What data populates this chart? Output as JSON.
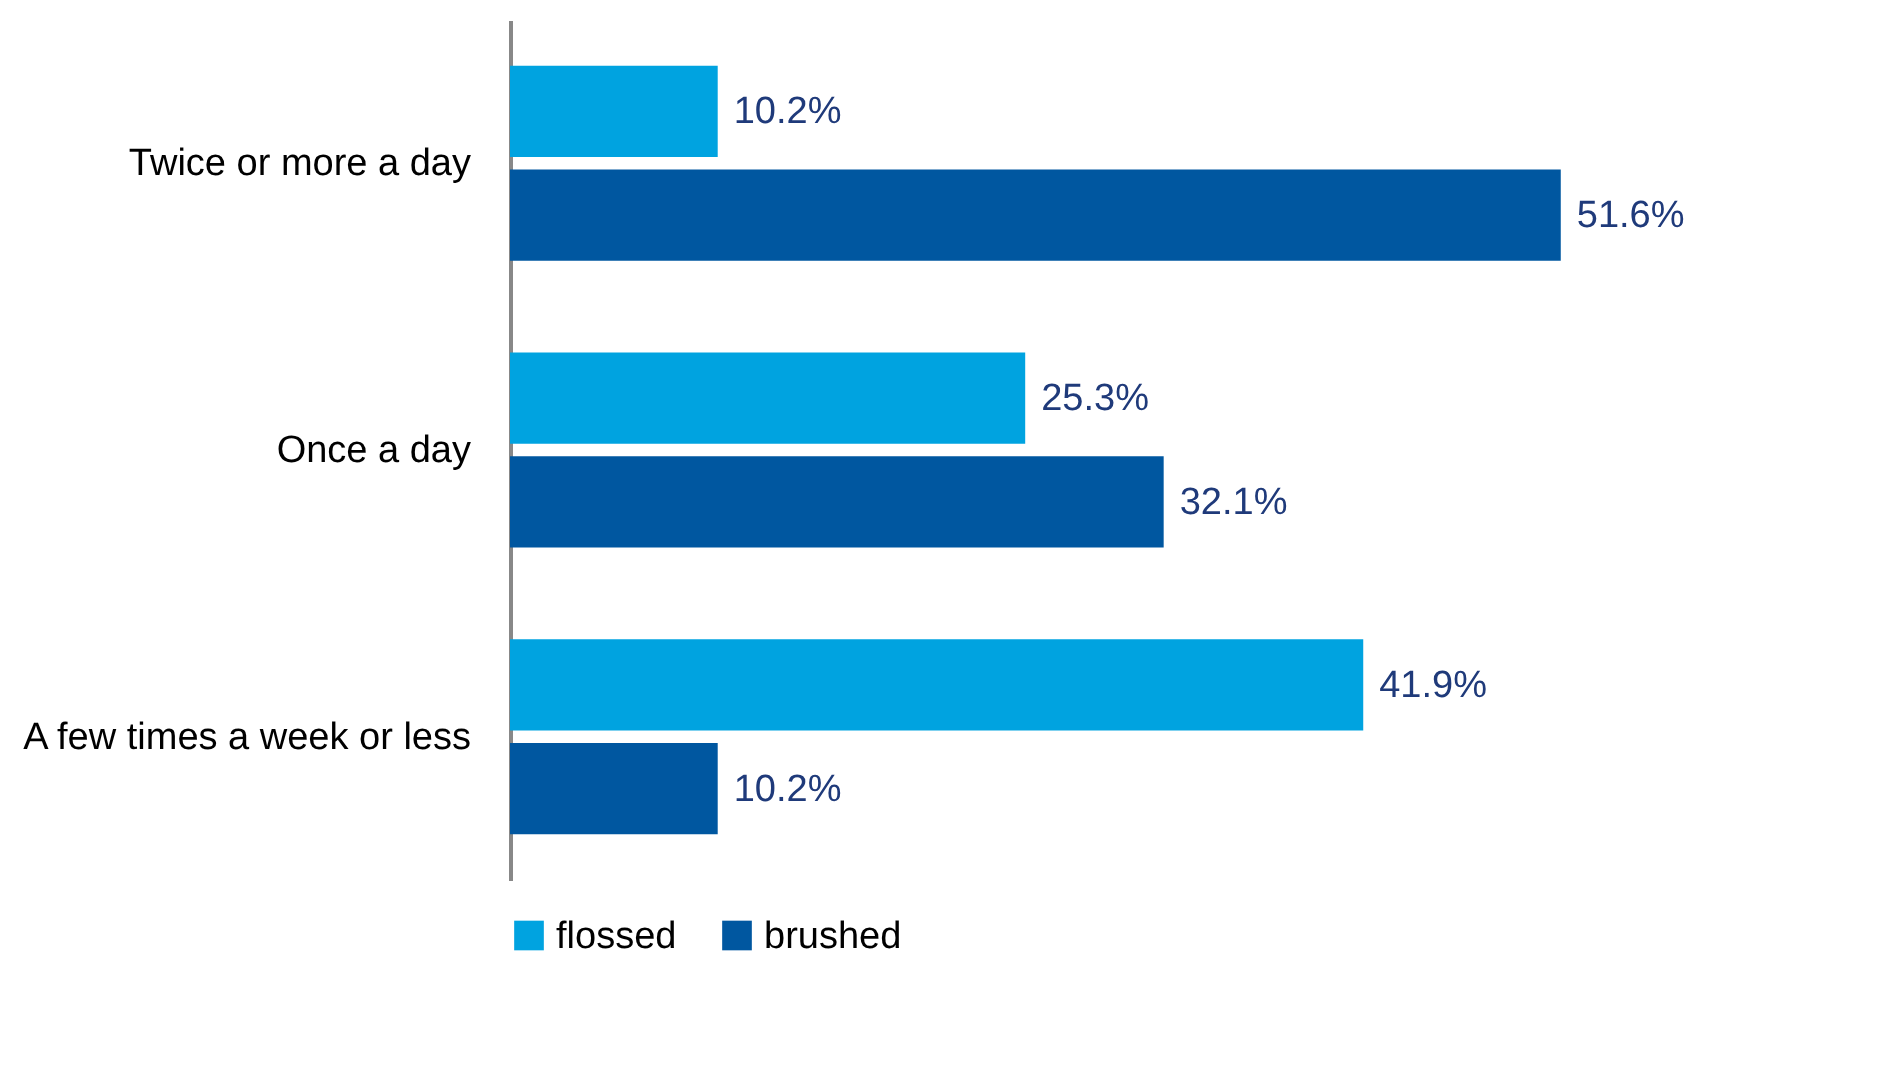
{
  "chart_data": {
    "type": "bar",
    "orientation": "horizontal",
    "categories": [
      "Twice or more a day",
      "Once a day",
      "A few times a week or less"
    ],
    "series": [
      {
        "name": "flossed",
        "color": "#00a3e0",
        "values": [
          10.2,
          25.3,
          41.9
        ],
        "value_labels": [
          "10.2%",
          "25.3%",
          "41.9%"
        ]
      },
      {
        "name": "brushed",
        "color": "#0057a0",
        "values": [
          51.6,
          32.1,
          10.2
        ],
        "value_labels": [
          "51.6%",
          "32.1%",
          "10.2%"
        ]
      }
    ],
    "legend": "bottom"
  }
}
